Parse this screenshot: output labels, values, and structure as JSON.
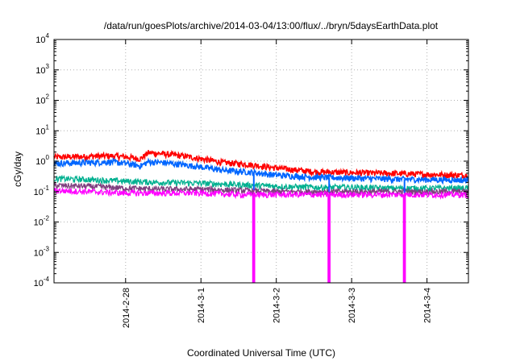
{
  "chart_data": {
    "type": "line",
    "title": "/data/run/goesPlots/archive/2014-03-04/13:00/flux/../bryn/5daysEarthData.plot",
    "xlabel": "Coordinated Universal Time (UTC)",
    "ylabel": "cGy/day",
    "yscale": "log",
    "ylim": [
      0.0001,
      10000
    ],
    "xlim": [
      -1.95,
      3.55
    ],
    "x_ticks": [
      {
        "label": "2014-2-28",
        "pos": -1
      },
      {
        "label": "2014-3-1",
        "pos": 0
      },
      {
        "label": "2014-3-2",
        "pos": 1
      },
      {
        "label": "2014-3-3",
        "pos": 2
      },
      {
        "label": "2014-3-4",
        "pos": 3
      }
    ],
    "y_ticks": [
      {
        "base": "10",
        "exp": "-4",
        "value": 0.0001
      },
      {
        "base": "10",
        "exp": "-3",
        "value": 0.001
      },
      {
        "base": "10",
        "exp": "-2",
        "value": 0.01
      },
      {
        "base": "10",
        "exp": "-1",
        "value": 0.1
      },
      {
        "base": "10",
        "exp": "0",
        "value": 1
      },
      {
        "base": "10",
        "exp": "1",
        "value": 10
      },
      {
        "base": "10",
        "exp": "2",
        "value": 100
      },
      {
        "base": "10",
        "exp": "3",
        "value": 1000
      },
      {
        "base": "10",
        "exp": "4",
        "value": 10000
      }
    ],
    "grid": true,
    "legend": "none",
    "series": [
      {
        "color": "#ff0000",
        "x": [
          -1.95,
          -1.5,
          -1.2,
          -1.0,
          -0.8,
          -0.7,
          -0.5,
          -0.2,
          0.0,
          0.3,
          0.6,
          1.0,
          1.5,
          2.0,
          2.5,
          3.0,
          3.55
        ],
        "y": [
          1.35,
          1.45,
          1.5,
          1.4,
          1.2,
          1.9,
          1.75,
          1.45,
          1.2,
          0.9,
          0.8,
          0.6,
          0.45,
          0.42,
          0.4,
          0.37,
          0.34
        ]
      },
      {
        "color": "#0066ff",
        "x": [
          -1.95,
          -1.5,
          -1.2,
          -1.0,
          -0.8,
          -0.7,
          -0.5,
          -0.2,
          0.0,
          0.3,
          0.6,
          1.0,
          1.5,
          2.0,
          2.5,
          3.0,
          3.55
        ],
        "y": [
          0.85,
          0.9,
          0.95,
          0.85,
          0.7,
          0.95,
          0.9,
          0.75,
          0.65,
          0.5,
          0.45,
          0.35,
          0.3,
          0.28,
          0.26,
          0.25,
          0.24
        ]
      },
      {
        "color": "#00b090",
        "x": [
          -1.95,
          -1.5,
          -1.0,
          -0.5,
          0.0,
          0.5,
          1.0,
          1.5,
          2.0,
          2.5,
          3.0,
          3.55
        ],
        "y": [
          0.27,
          0.25,
          0.22,
          0.2,
          0.19,
          0.17,
          0.15,
          0.14,
          0.14,
          0.13,
          0.13,
          0.13
        ]
      },
      {
        "color": "#7f3f7f",
        "x": [
          -1.95,
          -1.5,
          -1.0,
          -0.5,
          0.0,
          0.5,
          1.0,
          1.5,
          2.0,
          2.5,
          3.0,
          3.55
        ],
        "y": [
          0.16,
          0.15,
          0.13,
          0.12,
          0.12,
          0.11,
          0.1,
          0.1,
          0.1,
          0.1,
          0.1,
          0.1
        ]
      },
      {
        "color": "#ff00ff",
        "x": [
          -1.95,
          -1.5,
          -1.0,
          -0.5,
          0.0,
          0.5,
          1.0,
          1.5,
          2.0,
          2.5,
          3.0,
          3.55
        ],
        "y": [
          0.11,
          0.1,
          0.09,
          0.09,
          0.09,
          0.08,
          0.08,
          0.08,
          0.08,
          0.08,
          0.08,
          0.08
        ]
      }
    ],
    "dropouts": [
      {
        "x_start": 0.68,
        "x_end": 0.72,
        "y_min": 0.0001
      },
      {
        "x_start": 1.68,
        "x_end": 1.72,
        "y_min": 0.0001
      },
      {
        "x_start": 2.68,
        "x_end": 2.72,
        "y_min": 0.0001
      }
    ]
  }
}
